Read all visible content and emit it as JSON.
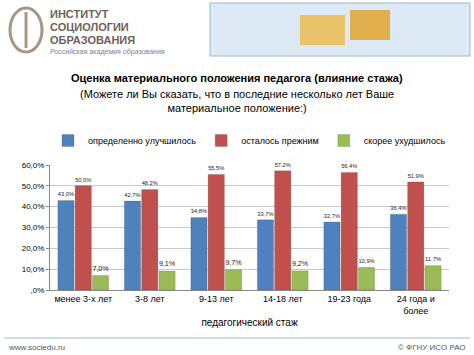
{
  "chart_data": {
    "type": "bar",
    "title": "Оценка материального положения педагога (влияние стажа)",
    "subtitle": "(Можете ли Вы сказать, что в последние несколько лет Ваше материальное положение:)",
    "x_label": "педагогический стаж",
    "categories": [
      "менее 3-х лет",
      "3-8 лет",
      "9-13 лет",
      "14-18 лет",
      "19-23 года",
      "24 года и более"
    ],
    "series": [
      {
        "name": "определенно улучшилось",
        "color": "#4f81bd",
        "values": [
          43.0,
          42.7,
          34.8,
          33.7,
          32.7,
          36.4
        ],
        "value_labels": [
          "43,0%",
          "42,7%",
          "34,8%",
          "33,7%",
          "32,7%",
          "36,4%"
        ]
      },
      {
        "name": "осталось прежним",
        "color": "#c0504d",
        "values": [
          50.0,
          48.2,
          55.5,
          57.2,
          56.4,
          51.9
        ],
        "value_labels": [
          "50,0%",
          "48,2%",
          "55,5%",
          "57,2%",
          "56,4%",
          "51,9%"
        ]
      },
      {
        "name": "скорее ухудшилось",
        "color": "#9bbb59",
        "values": [
          7.0,
          9.1,
          9.7,
          9.2,
          10.9,
          11.7
        ],
        "value_labels": [
          "7,0%",
          "9,1%",
          "9,7%",
          "9,2%",
          "10,9%",
          "11,7%"
        ]
      }
    ],
    "ylim": [
      0,
      60
    ],
    "yticks": [
      {
        "value": 0,
        "label": ",0%"
      },
      {
        "value": 10,
        "label": "10,0%"
      },
      {
        "value": 20,
        "label": "20,0%"
      },
      {
        "value": 30,
        "label": "30,0%"
      },
      {
        "value": 40,
        "label": "40,0%"
      },
      {
        "value": 50,
        "label": "50,0%"
      },
      {
        "value": 60,
        "label": "60,0%"
      }
    ],
    "grid": true,
    "legend": "top",
    "data_labels": true,
    "annotations": [
      "ИНСТИТУТ",
      "СОЦИОЛОГИИ",
      "ОБРАЗОВАНИЯ",
      "Российская академия образования",
      "www.sociedu.ru",
      "© ФГНУ ИСО РАО"
    ]
  }
}
